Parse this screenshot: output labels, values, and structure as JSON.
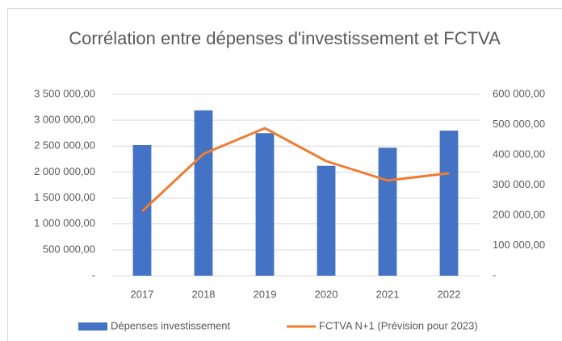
{
  "chart_data": {
    "type": "bar_line",
    "title": "Corrélation entre dépenses d'investissement et FCTVA",
    "categories": [
      "2017",
      "2018",
      "2019",
      "2020",
      "2021",
      "2022"
    ],
    "series": [
      {
        "name": "Dépenses investissement",
        "type": "bar",
        "color": "#4472c4",
        "axis": "y",
        "values": [
          2520000,
          3190000,
          2750000,
          2120000,
          2470000,
          2800000
        ]
      },
      {
        "name": "FCTVA N+1 (Prévision pour 2023)",
        "type": "line",
        "color": "#ed7d31",
        "axis": "y2",
        "values": [
          213000,
          403000,
          488000,
          379000,
          315000,
          339000
        ]
      }
    ],
    "ylim": [
      0,
      3500000
    ],
    "yticks": [
      {
        "value": 0,
        "label": "-"
      },
      {
        "value": 500000,
        "label": "500 000,00"
      },
      {
        "value": 1000000,
        "label": "1 000 000,00"
      },
      {
        "value": 1500000,
        "label": "1 500 000,00"
      },
      {
        "value": 2000000,
        "label": "2 000 000,00"
      },
      {
        "value": 2500000,
        "label": "2 500 000,00"
      },
      {
        "value": 3000000,
        "label": "3 000 000,00"
      },
      {
        "value": 3500000,
        "label": "3 500 000,00"
      }
    ],
    "y2lim": [
      0,
      600000
    ],
    "y2ticks": [
      {
        "value": 0,
        "label": "-"
      },
      {
        "value": 100000,
        "label": "100 000,00"
      },
      {
        "value": 200000,
        "label": "200 000,00"
      },
      {
        "value": 300000,
        "label": "300 000,00"
      },
      {
        "value": 400000,
        "label": "400 000,00"
      },
      {
        "value": 500000,
        "label": "500 000,00"
      },
      {
        "value": 600000,
        "label": "600 000,00"
      }
    ],
    "grid": true,
    "legend": "bottom"
  }
}
